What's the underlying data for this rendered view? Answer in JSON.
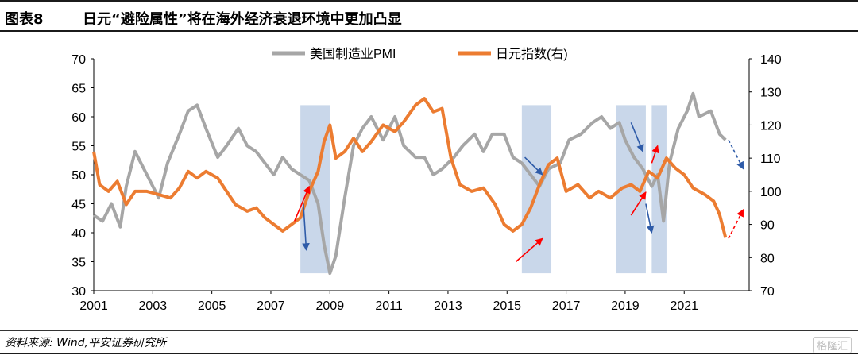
{
  "header": {
    "figure_label": "图表8",
    "title": "日元“避险属性”将在海外经济衰退环境中更加凸显"
  },
  "source": "资料来源: Wind,平安证券研究所",
  "watermark": "格隆汇",
  "colors": {
    "pmi": "#a6a6a6",
    "jpy": "#ec7c31",
    "shade": "#c9d7ea",
    "red": "#ff0000",
    "blue": "#2e5ba8"
  },
  "chart_data": {
    "type": "line",
    "x_ticks": [
      "2001",
      "2003",
      "2005",
      "2007",
      "2009",
      "2011",
      "2013",
      "2015",
      "2017",
      "2019",
      "2021"
    ],
    "left_axis": {
      "ticks": [
        "70",
        "65",
        "60",
        "55",
        "50",
        "45",
        "40",
        "35",
        "30"
      ],
      "range": [
        30,
        70
      ]
    },
    "right_axis": {
      "ticks": [
        "140",
        "130",
        "120",
        "110",
        "100",
        "90",
        "80",
        "70"
      ],
      "range": [
        70,
        140
      ]
    },
    "legend": [
      "美国制造业PMI",
      "日元指数(右)"
    ],
    "x_range": [
      2001,
      2023.2
    ],
    "shaded_periods": [
      [
        2008.0,
        2009.0
      ],
      [
        2015.5,
        2016.5
      ],
      [
        2018.7,
        2019.7
      ],
      [
        2019.9,
        2020.4
      ]
    ],
    "series": [
      {
        "name": "美国制造业PMI",
        "axis": "left",
        "points": [
          [
            2001.0,
            43
          ],
          [
            2001.3,
            42
          ],
          [
            2001.6,
            45
          ],
          [
            2001.9,
            41
          ],
          [
            2002.1,
            48
          ],
          [
            2002.4,
            54
          ],
          [
            2002.8,
            50
          ],
          [
            2003.2,
            46
          ],
          [
            2003.5,
            52
          ],
          [
            2003.9,
            57
          ],
          [
            2004.2,
            61
          ],
          [
            2004.5,
            62
          ],
          [
            2004.8,
            58
          ],
          [
            2005.2,
            53
          ],
          [
            2005.5,
            55
          ],
          [
            2005.9,
            58
          ],
          [
            2006.2,
            55
          ],
          [
            2006.5,
            54
          ],
          [
            2006.8,
            52
          ],
          [
            2007.1,
            50
          ],
          [
            2007.4,
            53
          ],
          [
            2007.7,
            51
          ],
          [
            2008.0,
            50
          ],
          [
            2008.3,
            49
          ],
          [
            2008.6,
            45
          ],
          [
            2008.8,
            38
          ],
          [
            2009.0,
            33
          ],
          [
            2009.2,
            36
          ],
          [
            2009.5,
            46
          ],
          [
            2009.8,
            55
          ],
          [
            2010.1,
            58
          ],
          [
            2010.4,
            60
          ],
          [
            2010.8,
            56
          ],
          [
            2011.2,
            60
          ],
          [
            2011.5,
            55
          ],
          [
            2011.9,
            53
          ],
          [
            2012.2,
            53
          ],
          [
            2012.5,
            50
          ],
          [
            2012.8,
            51
          ],
          [
            2013.2,
            53
          ],
          [
            2013.5,
            55
          ],
          [
            2013.9,
            57
          ],
          [
            2014.2,
            54
          ],
          [
            2014.5,
            57
          ],
          [
            2014.9,
            57
          ],
          [
            2015.2,
            53
          ],
          [
            2015.5,
            52
          ],
          [
            2015.8,
            50
          ],
          [
            2016.1,
            48
          ],
          [
            2016.4,
            51
          ],
          [
            2016.8,
            52
          ],
          [
            2017.1,
            56
          ],
          [
            2017.5,
            57
          ],
          [
            2017.9,
            59
          ],
          [
            2018.2,
            60
          ],
          [
            2018.5,
            58
          ],
          [
            2018.8,
            59
          ],
          [
            2019.0,
            56
          ],
          [
            2019.3,
            53
          ],
          [
            2019.6,
            51
          ],
          [
            2019.9,
            48
          ],
          [
            2020.1,
            50
          ],
          [
            2020.3,
            42
          ],
          [
            2020.5,
            52
          ],
          [
            2020.8,
            58
          ],
          [
            2021.1,
            61
          ],
          [
            2021.3,
            64
          ],
          [
            2021.5,
            60
          ],
          [
            2021.9,
            61
          ],
          [
            2022.2,
            57
          ],
          [
            2022.4,
            56
          ]
        ]
      },
      {
        "name": "日元指数(右)",
        "axis": "right",
        "points": [
          [
            2001.0,
            112
          ],
          [
            2001.2,
            102
          ],
          [
            2001.5,
            100
          ],
          [
            2001.8,
            103
          ],
          [
            2002.1,
            96
          ],
          [
            2002.4,
            100
          ],
          [
            2002.8,
            100
          ],
          [
            2003.2,
            99
          ],
          [
            2003.6,
            98
          ],
          [
            2003.9,
            101
          ],
          [
            2004.2,
            106
          ],
          [
            2004.5,
            104
          ],
          [
            2004.8,
            106
          ],
          [
            2005.2,
            104
          ],
          [
            2005.5,
            100
          ],
          [
            2005.8,
            96
          ],
          [
            2006.2,
            94
          ],
          [
            2006.5,
            95
          ],
          [
            2006.8,
            92
          ],
          [
            2007.1,
            90
          ],
          [
            2007.4,
            88
          ],
          [
            2007.7,
            90
          ],
          [
            2008.0,
            92
          ],
          [
            2008.3,
            100
          ],
          [
            2008.6,
            106
          ],
          [
            2008.8,
            115
          ],
          [
            2009.0,
            120
          ],
          [
            2009.2,
            110
          ],
          [
            2009.5,
            112
          ],
          [
            2009.8,
            116
          ],
          [
            2010.1,
            112
          ],
          [
            2010.4,
            115
          ],
          [
            2010.8,
            120
          ],
          [
            2011.2,
            118
          ],
          [
            2011.5,
            121
          ],
          [
            2011.9,
            126
          ],
          [
            2012.2,
            128
          ],
          [
            2012.5,
            124
          ],
          [
            2012.8,
            125
          ],
          [
            2013.1,
            110
          ],
          [
            2013.4,
            102
          ],
          [
            2013.8,
            100
          ],
          [
            2014.2,
            101
          ],
          [
            2014.6,
            96
          ],
          [
            2014.9,
            90
          ],
          [
            2015.2,
            88
          ],
          [
            2015.5,
            90
          ],
          [
            2015.8,
            95
          ],
          [
            2016.1,
            102
          ],
          [
            2016.4,
            108
          ],
          [
            2016.7,
            110
          ],
          [
            2017.0,
            100
          ],
          [
            2017.4,
            102
          ],
          [
            2017.8,
            98
          ],
          [
            2018.1,
            100
          ],
          [
            2018.5,
            98
          ],
          [
            2018.9,
            101
          ],
          [
            2019.2,
            102
          ],
          [
            2019.5,
            100
          ],
          [
            2019.8,
            106
          ],
          [
            2020.1,
            104
          ],
          [
            2020.4,
            110
          ],
          [
            2020.7,
            107
          ],
          [
            2021.0,
            105
          ],
          [
            2021.3,
            101
          ],
          [
            2021.7,
            99
          ],
          [
            2022.0,
            97
          ],
          [
            2022.2,
            93
          ],
          [
            2022.4,
            86
          ]
        ]
      }
    ],
    "annotations": [
      {
        "kind": "red",
        "from": [
          2007.8,
          42
        ],
        "to": [
          2008.3,
          48
        ]
      },
      {
        "kind": "blue",
        "from": [
          2008.1,
          45
        ],
        "to": [
          2008.2,
          37
        ]
      },
      {
        "kind": "blue",
        "from": [
          2015.6,
          53
        ],
        "to": [
          2016.2,
          50
        ]
      },
      {
        "kind": "red",
        "from": [
          2015.3,
          35
        ],
        "to": [
          2016.2,
          39
        ]
      },
      {
        "kind": "blue",
        "from": [
          2019.2,
          59
        ],
        "to": [
          2019.6,
          54
        ]
      },
      {
        "kind": "red",
        "from": [
          2019.2,
          43
        ],
        "to": [
          2019.7,
          47
        ]
      },
      {
        "kind": "red",
        "from": [
          2019.9,
          52
        ],
        "to": [
          2020.1,
          55
        ]
      },
      {
        "kind": "blue",
        "from": [
          2019.7,
          45
        ],
        "to": [
          2019.9,
          40
        ]
      },
      {
        "kind": "blue-dash",
        "from": [
          2022.5,
          56
        ],
        "to": [
          2023.0,
          51
        ]
      },
      {
        "kind": "red-dash",
        "from": [
          2022.5,
          39
        ],
        "to": [
          2023.0,
          44
        ]
      }
    ]
  }
}
